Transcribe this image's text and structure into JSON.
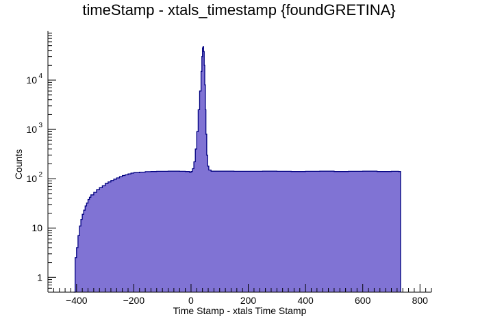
{
  "chart_data": {
    "type": "histogram",
    "title": "timeStamp - xtals_timestamp {foundGRETINA}",
    "xlabel": "Time Stamp - xtals Time Stamp",
    "ylabel": "Counts",
    "xlim": [
      -500,
      840
    ],
    "ylim": [
      0.5,
      100000
    ],
    "y_scale": "log",
    "x_ticks": [
      -400,
      -200,
      0,
      200,
      400,
      600,
      800
    ],
    "x_tick_labels": [
      "−400",
      "−200",
      "0",
      "200",
      "400",
      "600",
      "800"
    ],
    "y_tick_labels": [
      {
        "value": 1,
        "base": "1",
        "exp": ""
      },
      {
        "value": 10,
        "base": "10",
        "exp": ""
      },
      {
        "value": 100,
        "base": "10",
        "exp": "2"
      },
      {
        "value": 1000,
        "base": "10",
        "exp": "3"
      },
      {
        "value": 10000,
        "base": "10",
        "exp": "4"
      }
    ],
    "series": [
      {
        "line_color": "#000080",
        "fill_color": "#6a5acd",
        "points": [
          [
            -410,
            0
          ],
          [
            -405,
            2.5
          ],
          [
            -400,
            4
          ],
          [
            -395,
            7
          ],
          [
            -390,
            11
          ],
          [
            -385,
            15
          ],
          [
            -380,
            19
          ],
          [
            -375,
            23
          ],
          [
            -370,
            28
          ],
          [
            -365,
            32
          ],
          [
            -360,
            38
          ],
          [
            -355,
            42
          ],
          [
            -350,
            47
          ],
          [
            -340,
            53
          ],
          [
            -330,
            60
          ],
          [
            -320,
            66
          ],
          [
            -310,
            72
          ],
          [
            -300,
            80
          ],
          [
            -290,
            86
          ],
          [
            -280,
            92
          ],
          [
            -270,
            98
          ],
          [
            -260,
            104
          ],
          [
            -250,
            110
          ],
          [
            -240,
            116
          ],
          [
            -230,
            120
          ],
          [
            -220,
            125
          ],
          [
            -210,
            130
          ],
          [
            -200,
            133
          ],
          [
            -180,
            136
          ],
          [
            -160,
            139
          ],
          [
            -140,
            140
          ],
          [
            -120,
            141
          ],
          [
            -100,
            141
          ],
          [
            -80,
            142
          ],
          [
            -60,
            142
          ],
          [
            -40,
            141
          ],
          [
            -20,
            140
          ],
          [
            -5,
            135
          ],
          [
            0,
            140
          ],
          [
            5,
            160
          ],
          [
            10,
            220
          ],
          [
            15,
            400
          ],
          [
            20,
            900
          ],
          [
            25,
            2500
          ],
          [
            30,
            6000
          ],
          [
            35,
            15000
          ],
          [
            38,
            30000
          ],
          [
            40,
            45000
          ],
          [
            42,
            48000
          ],
          [
            44,
            38000
          ],
          [
            46,
            20000
          ],
          [
            48,
            8000
          ],
          [
            50,
            2500
          ],
          [
            52,
            800
          ],
          [
            55,
            300
          ],
          [
            58,
            180
          ],
          [
            62,
            150
          ],
          [
            70,
            142
          ],
          [
            100,
            142
          ],
          [
            150,
            141
          ],
          [
            200,
            141
          ],
          [
            250,
            142
          ],
          [
            300,
            141
          ],
          [
            350,
            140
          ],
          [
            400,
            141
          ],
          [
            450,
            142
          ],
          [
            500,
            140
          ],
          [
            550,
            141
          ],
          [
            600,
            142
          ],
          [
            650,
            140
          ],
          [
            700,
            141
          ],
          [
            725,
            140
          ],
          [
            732,
            0
          ]
        ]
      }
    ]
  }
}
